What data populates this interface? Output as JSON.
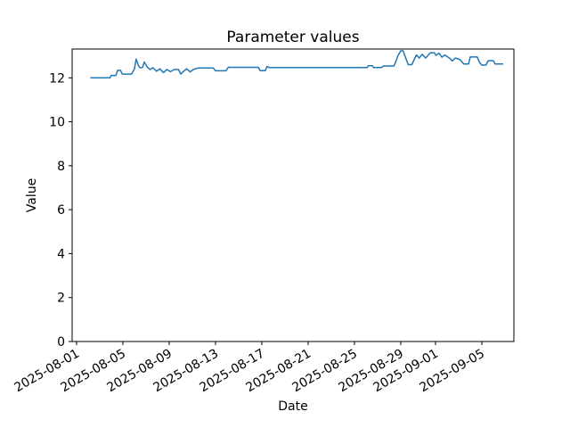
{
  "chart_data": {
    "type": "line",
    "title": "Parameter values",
    "xlabel": "Date",
    "ylabel": "Value",
    "x_start_date": "2025-08-01",
    "x_tick_labels": [
      "2025-08-01",
      "2025-08-05",
      "2025-08-09",
      "2025-08-13",
      "2025-08-17",
      "2025-08-21",
      "2025-08-25",
      "2025-08-29",
      "2025-09-01",
      "2025-09-05"
    ],
    "x_tick_days": [
      0,
      4,
      8,
      12,
      16,
      20,
      24,
      28,
      31,
      35
    ],
    "xlim_days": [
      -0.38,
      37.77
    ],
    "yticks": [
      0,
      2,
      4,
      6,
      8,
      10,
      12
    ],
    "ylim": [
      0,
      13.31
    ],
    "grid": false,
    "legend": "none",
    "line_color": "#1f77b4",
    "axis_color": "#000000",
    "background_color": "#ffffff",
    "series": [
      {
        "name": "parameter-values",
        "points": [
          [
            1.2,
            12.0
          ],
          [
            2.9,
            12.0
          ],
          [
            3.0,
            12.11
          ],
          [
            3.4,
            12.11
          ],
          [
            3.55,
            12.34
          ],
          [
            3.8,
            12.34
          ],
          [
            3.95,
            12.17
          ],
          [
            4.75,
            12.17
          ],
          [
            5.0,
            12.4
          ],
          [
            5.15,
            12.85
          ],
          [
            5.35,
            12.55
          ],
          [
            5.5,
            12.45
          ],
          [
            5.7,
            12.47
          ],
          [
            5.85,
            12.72
          ],
          [
            6.1,
            12.5
          ],
          [
            6.35,
            12.38
          ],
          [
            6.6,
            12.46
          ],
          [
            6.9,
            12.3
          ],
          [
            7.2,
            12.41
          ],
          [
            7.5,
            12.24
          ],
          [
            7.8,
            12.38
          ],
          [
            8.1,
            12.28
          ],
          [
            8.45,
            12.38
          ],
          [
            8.8,
            12.38
          ],
          [
            9.0,
            12.17
          ],
          [
            9.25,
            12.3
          ],
          [
            9.5,
            12.41
          ],
          [
            9.8,
            12.27
          ],
          [
            10.1,
            12.38
          ],
          [
            10.5,
            12.45
          ],
          [
            11.8,
            12.45
          ],
          [
            12.0,
            12.32
          ],
          [
            12.9,
            12.32
          ],
          [
            13.1,
            12.48
          ],
          [
            15.7,
            12.48
          ],
          [
            15.85,
            12.33
          ],
          [
            16.3,
            12.33
          ],
          [
            16.45,
            12.52
          ],
          [
            16.6,
            12.47
          ],
          [
            25.1,
            12.47
          ],
          [
            25.2,
            12.55
          ],
          [
            25.55,
            12.55
          ],
          [
            25.65,
            12.47
          ],
          [
            26.35,
            12.47
          ],
          [
            26.5,
            12.54
          ],
          [
            27.4,
            12.54
          ],
          [
            27.55,
            12.7
          ],
          [
            27.75,
            13.0
          ],
          [
            28.0,
            13.23
          ],
          [
            28.2,
            13.23
          ],
          [
            28.5,
            12.8
          ],
          [
            28.65,
            12.6
          ],
          [
            28.95,
            12.6
          ],
          [
            29.35,
            13.04
          ],
          [
            29.6,
            12.9
          ],
          [
            29.85,
            13.07
          ],
          [
            30.15,
            12.9
          ],
          [
            30.55,
            13.14
          ],
          [
            30.9,
            13.14
          ],
          [
            31.05,
            13.02
          ],
          [
            31.3,
            13.12
          ],
          [
            31.55,
            12.94
          ],
          [
            31.8,
            13.04
          ],
          [
            32.2,
            12.9
          ],
          [
            32.45,
            12.77
          ],
          [
            32.7,
            12.9
          ],
          [
            33.1,
            12.84
          ],
          [
            33.45,
            12.63
          ],
          [
            33.85,
            12.63
          ],
          [
            34.0,
            12.95
          ],
          [
            34.6,
            12.95
          ],
          [
            34.8,
            12.7
          ],
          [
            35.0,
            12.58
          ],
          [
            35.35,
            12.58
          ],
          [
            35.55,
            12.78
          ],
          [
            36.0,
            12.78
          ],
          [
            36.15,
            12.63
          ],
          [
            36.85,
            12.63
          ]
        ]
      }
    ]
  }
}
